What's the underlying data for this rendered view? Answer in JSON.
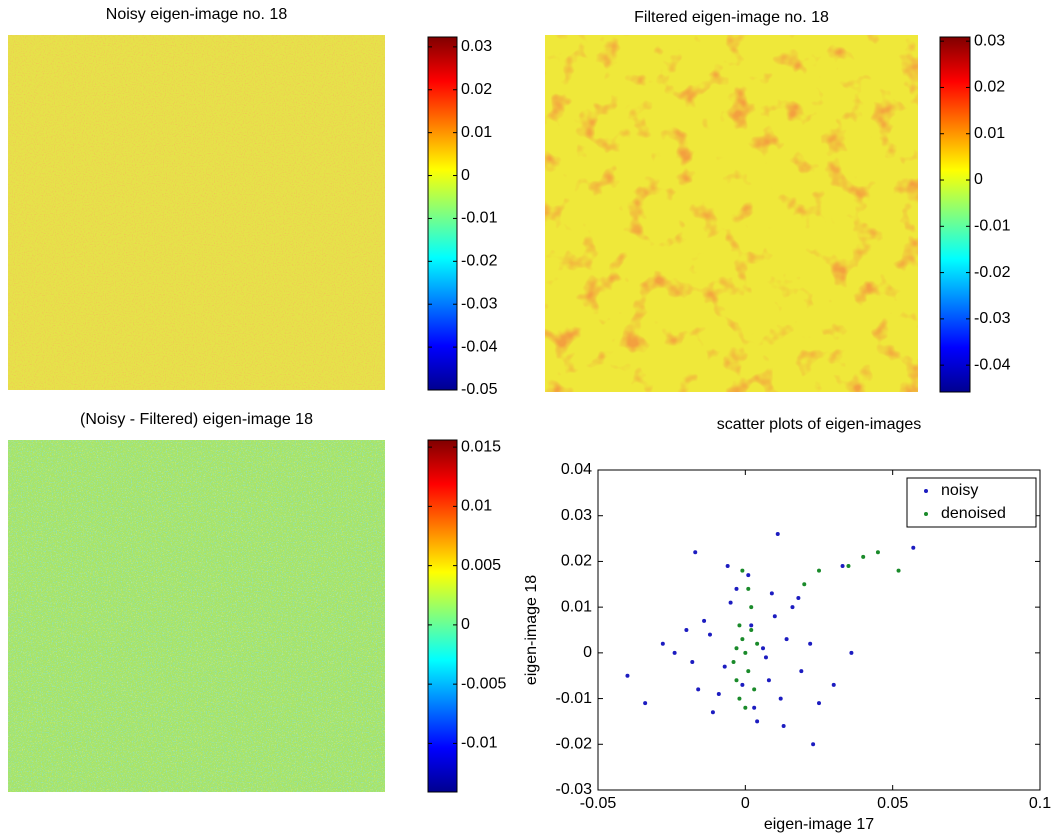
{
  "chart_data": [
    {
      "type": "image",
      "title": "Noisy eigen-image no. 18",
      "colormap": "jet",
      "clim": [
        -0.05,
        0.0323
      ],
      "cticks": [
        0.03,
        0.02,
        0.01,
        0,
        -0.01,
        -0.02,
        -0.03,
        -0.04,
        -0.05
      ]
    },
    {
      "type": "image",
      "title": "Filtered eigen-image no. 18",
      "colormap": "jet",
      "clim": [
        -0.0458,
        0.0309
      ],
      "cticks": [
        0.03,
        0.02,
        0.01,
        0,
        -0.01,
        -0.02,
        -0.03,
        -0.04
      ]
    },
    {
      "type": "image",
      "title": "(Noisy - Filtered) eigen-image 18",
      "colormap": "jet",
      "clim": [
        -0.0141,
        0.0156
      ],
      "cticks": [
        0.015,
        0.01,
        0.005,
        0,
        -0.005,
        -0.01
      ]
    },
    {
      "type": "scatter",
      "title": "scatter plots of eigen-images",
      "x_label": "eigen-image 17",
      "y_label": "eigen-image 18",
      "xlim": [
        -0.05,
        0.1
      ],
      "ylim": [
        -0.03,
        0.04
      ],
      "xticks": [
        -0.05,
        0,
        0.05,
        0.1
      ],
      "yticks": [
        -0.03,
        -0.02,
        -0.01,
        0,
        0.01,
        0.02,
        0.03,
        0.04
      ],
      "legend": "upper right",
      "series": [
        {
          "name": "noisy",
          "color": "#1c1cc0",
          "x": [
            -0.012,
            0.008,
            -0.005,
            0.014,
            -0.018,
            0.003,
            0.01,
            -0.009,
            0.019,
            -0.003,
            0.006,
            -0.014,
            0.012,
            -0.007,
            0.001,
            0.016,
            -0.02,
            0.004,
            -0.001,
            0.009,
            -0.011,
            0.022,
            -0.016,
            0.007,
            0.002,
            -0.006,
            0.013,
            -0.024,
            0.018,
            0.025,
            0.057,
            0.033,
            -0.04,
            -0.034,
            0.036,
            0.023,
            -0.017,
            0.011,
            -0.028,
            0.03
          ],
          "values": [
            0.004,
            -0.006,
            0.011,
            0.003,
            -0.002,
            -0.012,
            0.008,
            -0.009,
            -0.004,
            0.014,
            0.001,
            0.007,
            -0.01,
            -0.003,
            0.017,
            0.01,
            0.005,
            -0.015,
            -0.007,
            0.013,
            -0.013,
            0.002,
            -0.008,
            -0.001,
            0.006,
            0.019,
            -0.016,
            0,
            0.012,
            -0.011,
            0.023,
            0.019,
            -0.005,
            -0.011,
            0,
            -0.02,
            0.022,
            0.026,
            0.002,
            -0.007
          ]
        },
        {
          "name": "denoised",
          "color": "#1a8a2a",
          "x": [
            -0.002,
            0.001,
            -0.003,
            0.002,
            0,
            -0.001,
            0.003,
            -0.004,
            0.001,
            -0.002,
            0.002,
            0,
            -0.001,
            0.004,
            -0.003,
            0.052,
            0.045,
            0.04,
            0.035,
            0.025,
            0.02
          ],
          "values": [
            0.006,
            -0.004,
            0.001,
            0.01,
            -0.012,
            0.003,
            -0.008,
            -0.002,
            0.014,
            -0.01,
            0.005,
            0,
            0.018,
            0.002,
            -0.006,
            0.018,
            0.022,
            0.021,
            0.019,
            0.018,
            0.015
          ]
        }
      ]
    }
  ]
}
